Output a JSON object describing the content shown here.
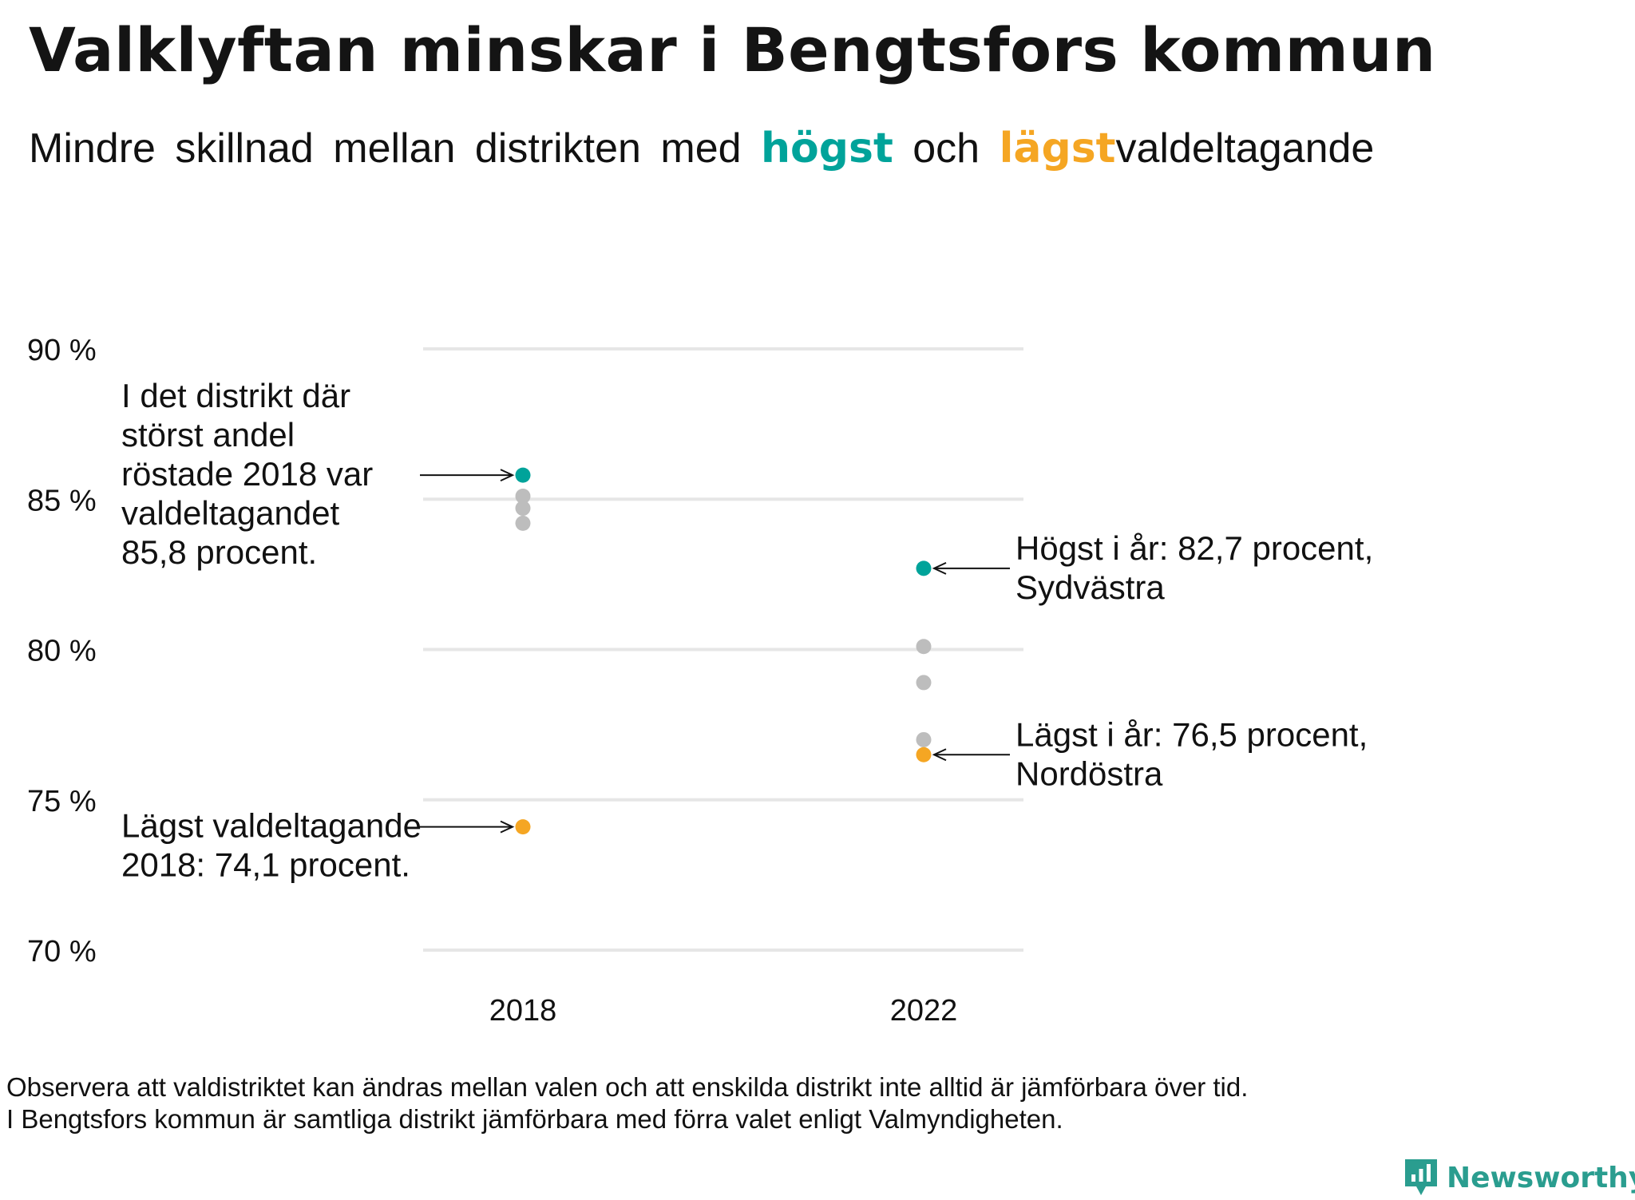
{
  "header": {
    "title": "Valklyftan minskar i Bengtsfors kommun",
    "subtitle_pre": "Mindre  skillnad  mellan  distrikten  med",
    "subtitle_high": "högst",
    "subtitle_mid": "och",
    "subtitle_low": "lägst",
    "subtitle_post": "valdeltagande"
  },
  "colors": {
    "high": "#00a39a",
    "low": "#f5a623",
    "other": "#bdbdbd",
    "grid": "#e6e6e6",
    "brand": "#2a9d8f"
  },
  "chart_data": {
    "type": "scatter",
    "categories": [
      "2018",
      "2022"
    ],
    "yticks": [
      "90 %",
      "85 %",
      "80 %",
      "75 %",
      "70 %"
    ],
    "ylim": [
      70,
      90
    ],
    "grid": true,
    "points": [
      {
        "x": "2018",
        "y": 85.8,
        "group": "high"
      },
      {
        "x": "2018",
        "y": 85.1,
        "group": "other"
      },
      {
        "x": "2018",
        "y": 84.7,
        "group": "other"
      },
      {
        "x": "2018",
        "y": 84.2,
        "group": "other"
      },
      {
        "x": "2018",
        "y": 74.1,
        "group": "low"
      },
      {
        "x": "2022",
        "y": 82.7,
        "group": "high"
      },
      {
        "x": "2022",
        "y": 80.1,
        "group": "other"
      },
      {
        "x": "2022",
        "y": 78.9,
        "group": "other"
      },
      {
        "x": "2022",
        "y": 77.0,
        "group": "other"
      },
      {
        "x": "2022",
        "y": 76.5,
        "group": "low"
      }
    ],
    "annotations": [
      {
        "lines": [
          "I det distrikt där",
          "störst andel",
          "röstade 2018 var",
          "valdeltagandet",
          "85,8 procent."
        ],
        "target": "2018-high"
      },
      {
        "lines": [
          "Lägst valdeltagande",
          "2018: 74,1 procent."
        ],
        "target": "2018-low"
      },
      {
        "lines": [
          "Högst i år: 82,7 procent,",
          "Sydvästra"
        ],
        "target": "2022-high"
      },
      {
        "lines": [
          "Lägst i år: 76,5 procent,",
          "Nordöstra"
        ],
        "target": "2022-low"
      }
    ]
  },
  "footnote": {
    "line1": "Observera att valdistriktet kan ändras mellan valen och att enskilda distrikt inte alltid är jämförbara över tid.",
    "line2": "I Bengtsfors kommun är samtliga distrikt jämförbara med förra valet enligt Valmyndigheten."
  },
  "brand": {
    "name": "Newsworthy",
    "icon": "newsworthy-logo-icon"
  }
}
